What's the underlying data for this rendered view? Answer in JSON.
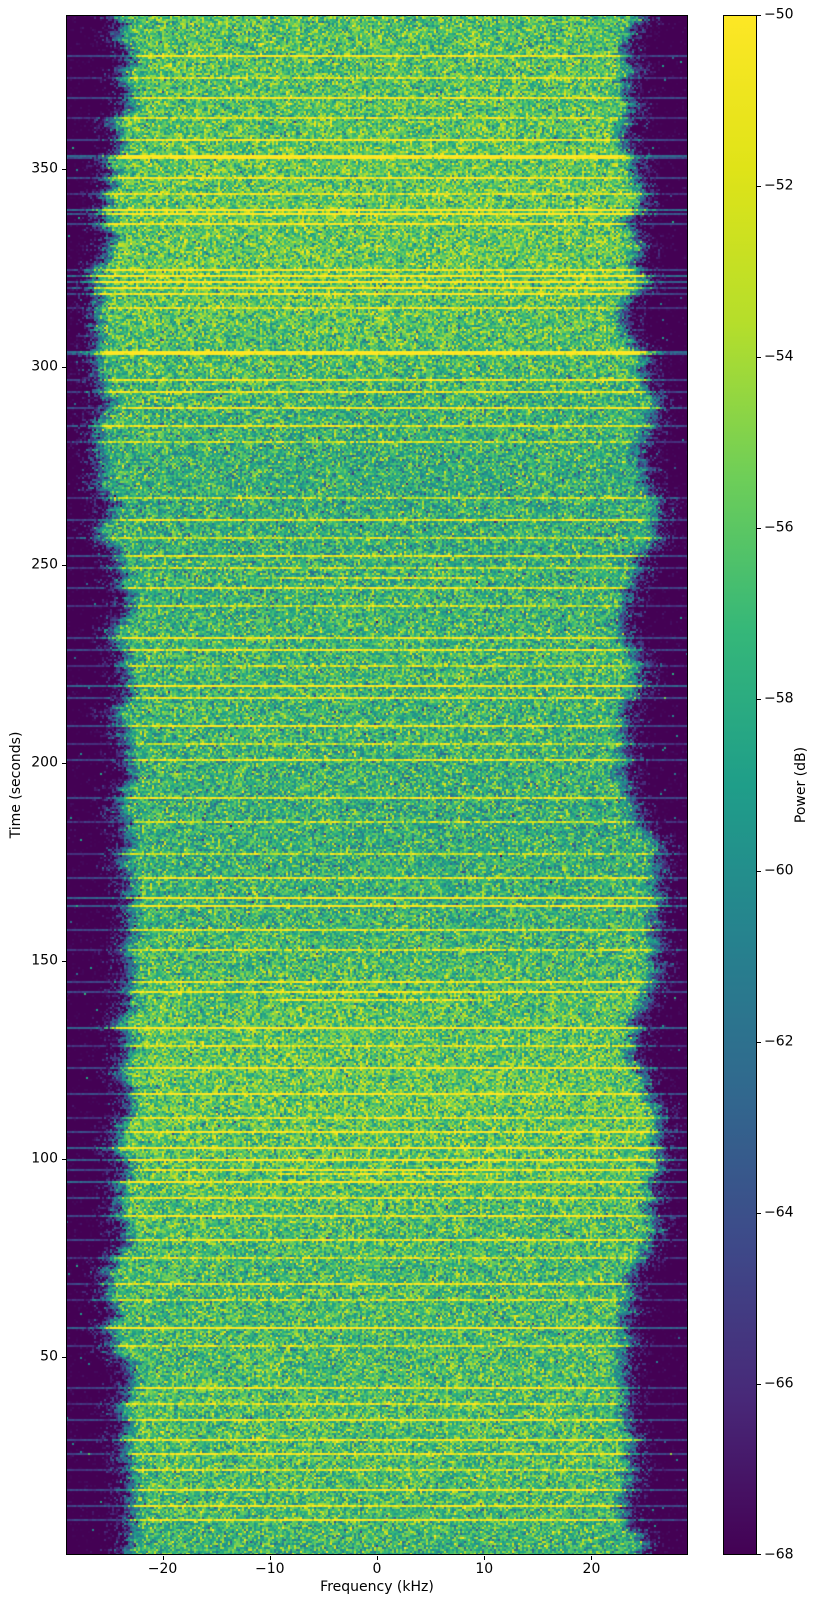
{
  "figure": {
    "background": "#ffffff"
  },
  "chart_data": {
    "type": "heatmap",
    "subtype": "spectrogram_waterfall",
    "title": "",
    "xlabel": "Frequency (kHz)",
    "ylabel": "Time (seconds)",
    "x_range_khz": [
      -29,
      29
    ],
    "y_range_s": [
      0,
      389
    ],
    "grid": false,
    "x_ticks": [
      {
        "v": -20,
        "label": "−20"
      },
      {
        "v": -10,
        "label": "−10"
      },
      {
        "v": 0,
        "label": "0"
      },
      {
        "v": 10,
        "label": "10"
      },
      {
        "v": 20,
        "label": "20"
      }
    ],
    "y_ticks": [
      {
        "v": 50,
        "label": "50"
      },
      {
        "v": 100,
        "label": "100"
      },
      {
        "v": 150,
        "label": "150"
      },
      {
        "v": 200,
        "label": "200"
      },
      {
        "v": 250,
        "label": "250"
      },
      {
        "v": 300,
        "label": "300"
      },
      {
        "v": 350,
        "label": "350"
      }
    ],
    "colorbar": {
      "label": "Power (dB)",
      "colormap": "viridis",
      "range_db": [
        -68,
        -50
      ],
      "ticks": [
        {
          "v": -50,
          "label": "−50"
        },
        {
          "v": -52,
          "label": "−52"
        },
        {
          "v": -54,
          "label": "−54"
        },
        {
          "v": -56,
          "label": "−56"
        },
        {
          "v": -58,
          "label": "−58"
        },
        {
          "v": -60,
          "label": "−60"
        },
        {
          "v": -62,
          "label": "−62"
        },
        {
          "v": -64,
          "label": "−64"
        },
        {
          "v": -66,
          "label": "−66"
        },
        {
          "v": -68,
          "label": "−68"
        }
      ]
    },
    "colormap_anchors": [
      {
        "p": 0.0,
        "c": "#440154"
      },
      {
        "p": 0.1,
        "c": "#482878"
      },
      {
        "p": 0.2,
        "c": "#3e4989"
      },
      {
        "p": 0.3,
        "c": "#31688e"
      },
      {
        "p": 0.4,
        "c": "#26828e"
      },
      {
        "p": 0.5,
        "c": "#1f9e89"
      },
      {
        "p": 0.6,
        "c": "#35b779"
      },
      {
        "p": 0.7,
        "c": "#6ece58"
      },
      {
        "p": 0.8,
        "c": "#b5de2b"
      },
      {
        "p": 0.9,
        "c": "#dfe318"
      },
      {
        "p": 1.0,
        "c": "#fde725"
      }
    ],
    "signal_model": {
      "noise_floor_db": -68.5,
      "inband_mean_db": -57.0,
      "inband_sigma_db": 2.4,
      "band_edge_khz": 23.2,
      "rolloff_width_khz": 2.8,
      "edge_jitter_khz": 1.7,
      "seed": 1337,
      "bursts_t_db": [
        [
          378.5,
          7
        ],
        [
          373,
          5
        ],
        [
          368,
          7
        ],
        [
          363,
          5
        ],
        [
          357.5,
          7
        ],
        [
          353.5,
          11
        ],
        [
          352.7,
          8
        ],
        [
          348,
          7
        ],
        [
          344,
          5
        ],
        [
          339.5,
          11
        ],
        [
          338.7,
          9
        ],
        [
          336,
          7
        ],
        [
          324.5,
          7
        ],
        [
          323,
          11
        ],
        [
          321.5,
          10
        ],
        [
          320,
          7
        ],
        [
          318.5,
          7
        ],
        [
          315,
          5
        ],
        [
          304,
          11
        ],
        [
          303.2,
          9
        ],
        [
          297,
          7
        ],
        [
          294,
          7
        ],
        [
          289.5,
          7
        ],
        [
          285,
          7
        ],
        [
          281,
          5
        ],
        [
          267,
          5
        ],
        [
          261.5,
          7
        ],
        [
          257,
          5
        ],
        [
          252.5,
          7
        ],
        [
          249.5,
          5
        ],
        [
          244.5,
          7
        ],
        [
          239.5,
          5
        ],
        [
          231.5,
          7
        ],
        [
          228.5,
          7
        ],
        [
          224.5,
          5
        ],
        [
          219.5,
          10
        ],
        [
          216.5,
          7
        ],
        [
          209.5,
          7
        ],
        [
          205,
          5
        ],
        [
          201,
          7
        ],
        [
          191,
          7
        ],
        [
          185,
          5
        ],
        [
          177,
          5
        ],
        [
          171,
          7
        ],
        [
          166,
          10
        ],
        [
          164,
          9
        ],
        [
          158,
          7
        ],
        [
          153,
          5
        ],
        [
          144.5,
          7
        ],
        [
          142,
          7
        ],
        [
          133,
          10
        ],
        [
          128.5,
          5
        ],
        [
          123,
          7
        ],
        [
          116.5,
          7
        ],
        [
          110.5,
          5
        ],
        [
          107,
          7
        ],
        [
          103,
          10
        ],
        [
          100,
          9
        ],
        [
          97,
          7
        ],
        [
          94,
          10
        ],
        [
          90,
          7
        ],
        [
          85.5,
          7
        ],
        [
          79.5,
          7
        ],
        [
          75,
          5
        ],
        [
          68.5,
          7
        ],
        [
          64.5,
          5
        ],
        [
          57.5,
          10
        ],
        [
          53,
          5
        ],
        [
          42,
          7
        ],
        [
          38,
          5
        ],
        [
          34,
          7
        ],
        [
          29,
          7
        ],
        [
          25.5,
          7
        ],
        [
          21.5,
          5
        ],
        [
          16.5,
          7
        ],
        [
          12.5,
          7
        ],
        [
          9,
          7
        ]
      ],
      "partial_bursts_t_db": [
        [
          247,
          6
        ],
        [
          140,
          6
        ],
        [
          96,
          5
        ]
      ]
    }
  }
}
